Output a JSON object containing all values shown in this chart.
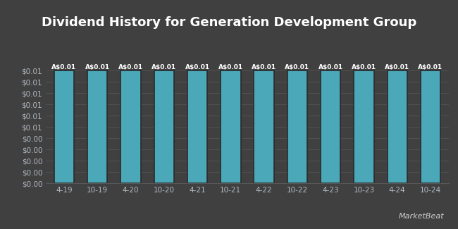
{
  "title": "Dividend History for Generation Development Group",
  "categories": [
    "4-19",
    "10-19",
    "4-20",
    "10-20",
    "4-21",
    "10-21",
    "4-22",
    "10-22",
    "4-23",
    "10-23",
    "4-24",
    "10-24"
  ],
  "values": [
    0.01,
    0.01,
    0.01,
    0.01,
    0.01,
    0.01,
    0.01,
    0.01,
    0.01,
    0.01,
    0.01,
    0.01
  ],
  "bar_labels": [
    "A$0.01",
    "A$0.01",
    "A$0.01",
    "A$0.01",
    "A$0.01",
    "A$0.01",
    "A$0.01",
    "A$0.01",
    "A$0.01",
    "A$0.01",
    "A$0.01",
    "A$0.01"
  ],
  "bar_color": "#4aa8b8",
  "bar_edge_color": "#2b2b2b",
  "background_color": "#404040",
  "plot_bg_color": "#404040",
  "title_color": "#ffffff",
  "tick_color": "#b0b8c0",
  "grid_color": "#585858",
  "bar_label_color": "#ffffff",
  "ylim_max": 0.011,
  "n_yticks": 11,
  "title_fontsize": 13,
  "tick_fontsize": 7.5,
  "bar_label_fontsize": 6.5,
  "bar_width": 0.6,
  "marketbeat_text": "MarketBeat",
  "marketbeat_color": "#cccccc"
}
